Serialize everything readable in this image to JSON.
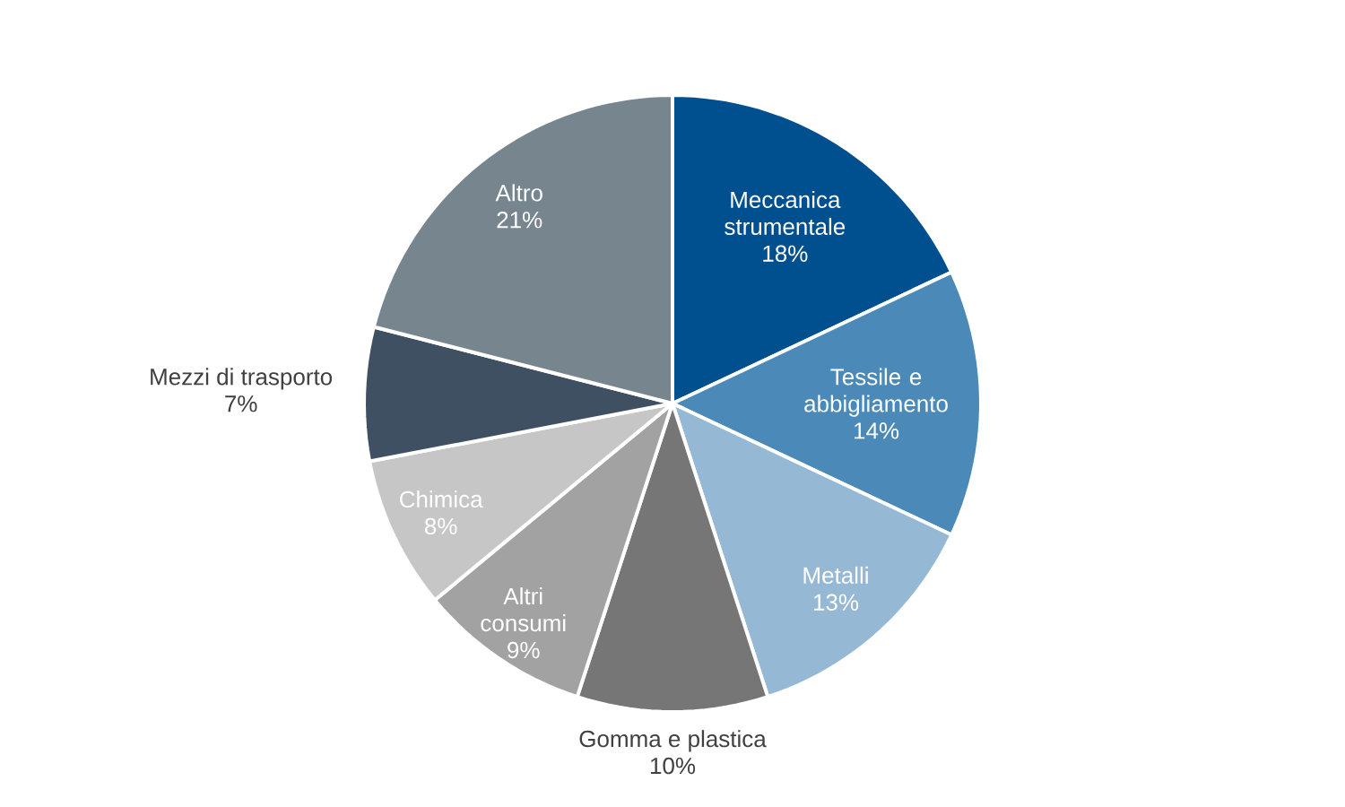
{
  "chart_data": {
    "type": "pie",
    "categories": [
      "Meccanica strumentale",
      "Tessile e abbigliamento",
      "Metalli",
      "Gomma e plastica",
      "Altri consumi",
      "Chimica",
      "Mezzi di trasporto",
      "Altro"
    ],
    "values": [
      18,
      14,
      13,
      10,
      9,
      8,
      7,
      21
    ],
    "value_labels": [
      "18%",
      "14%",
      "13%",
      "10%",
      "9%",
      "8%",
      "7%",
      "21%"
    ],
    "colors": [
      "#00508f",
      "#4a89b8",
      "#95b8d5",
      "#767676",
      "#a2a2a2",
      "#c6c6c6",
      "#3e5062",
      "#77858f"
    ]
  }
}
